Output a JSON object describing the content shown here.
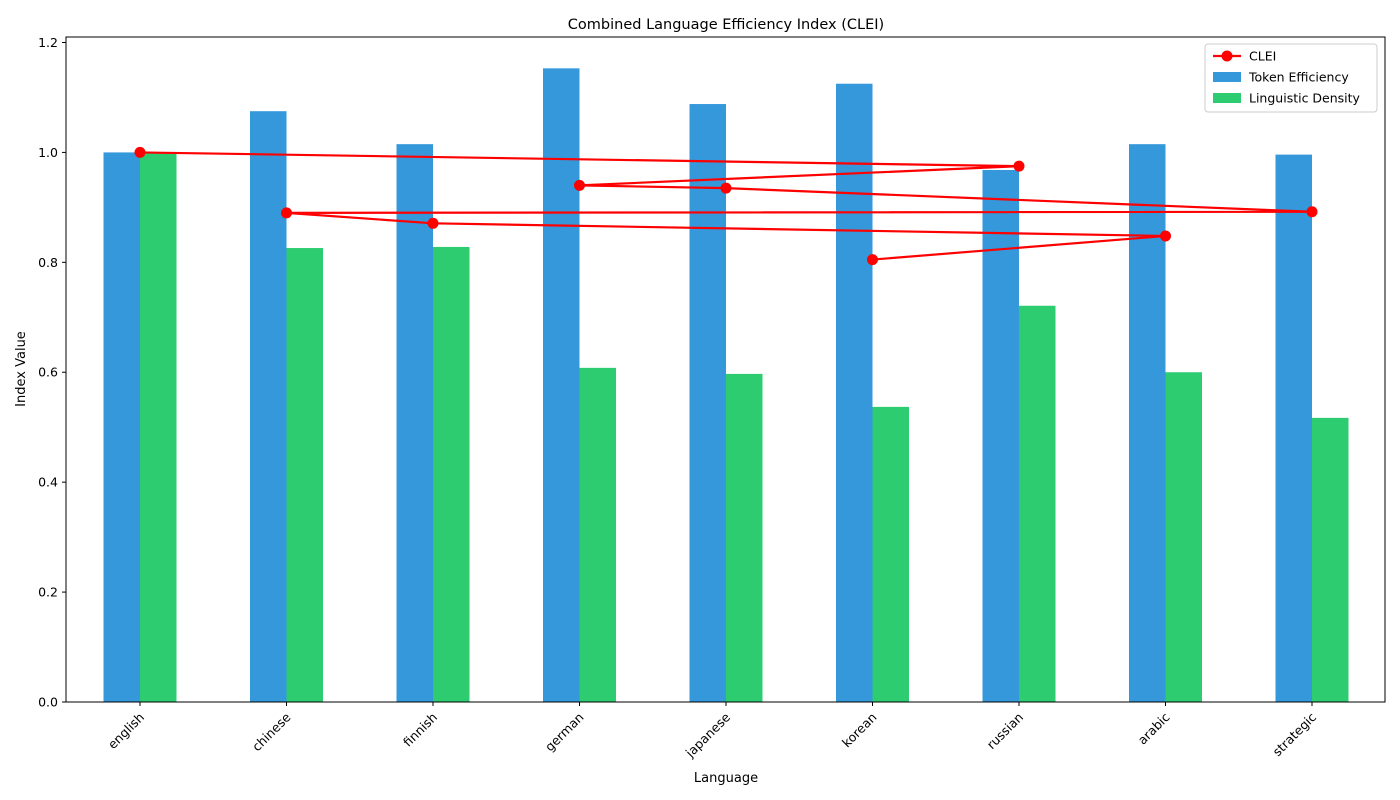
{
  "chart_data": {
    "type": "bar",
    "title": "Combined Language Efficiency Index (CLEI)",
    "xlabel": "Language",
    "ylabel": "Index Value",
    "ylim": [
      0,
      1.21
    ],
    "yticks": [
      "0.0",
      "0.2",
      "0.4",
      "0.6",
      "0.8",
      "1.0",
      "1.2"
    ],
    "grid": false,
    "legend_position": "top-right",
    "categories": [
      "english",
      "chinese",
      "finnish",
      "german",
      "japanese",
      "korean",
      "russian",
      "arabic",
      "strategic"
    ],
    "series": [
      {
        "name": "Token Efficiency",
        "kind": "bar",
        "color": "#3498db",
        "values": [
          1.0,
          1.075,
          1.015,
          1.153,
          1.088,
          1.125,
          0.968,
          1.015,
          0.996
        ]
      },
      {
        "name": "Linguistic Density",
        "kind": "bar",
        "color": "#2ecc71",
        "values": [
          1.0,
          0.826,
          0.828,
          0.608,
          0.597,
          0.537,
          0.721,
          0.6,
          0.517
        ]
      },
      {
        "name": "CLEI",
        "kind": "line",
        "color": "#ff0000",
        "x_categories": [
          "english",
          "russian",
          "german",
          "japanese",
          "strategic",
          "chinese",
          "finnish",
          "arabic",
          "korean"
        ],
        "points": [
          {
            "category": "english",
            "value": 1.0
          },
          {
            "category": "russian",
            "value": 0.975
          },
          {
            "category": "german",
            "value": 0.94
          },
          {
            "category": "japanese",
            "value": 0.935
          },
          {
            "category": "strategic",
            "value": 0.892
          },
          {
            "category": "chinese",
            "value": 0.89
          },
          {
            "category": "finnish",
            "value": 0.871
          },
          {
            "category": "arabic",
            "value": 0.848
          },
          {
            "category": "korean",
            "value": 0.805
          }
        ]
      }
    ],
    "legend": [
      "CLEI",
      "Token Efficiency",
      "Linguistic Density"
    ]
  }
}
